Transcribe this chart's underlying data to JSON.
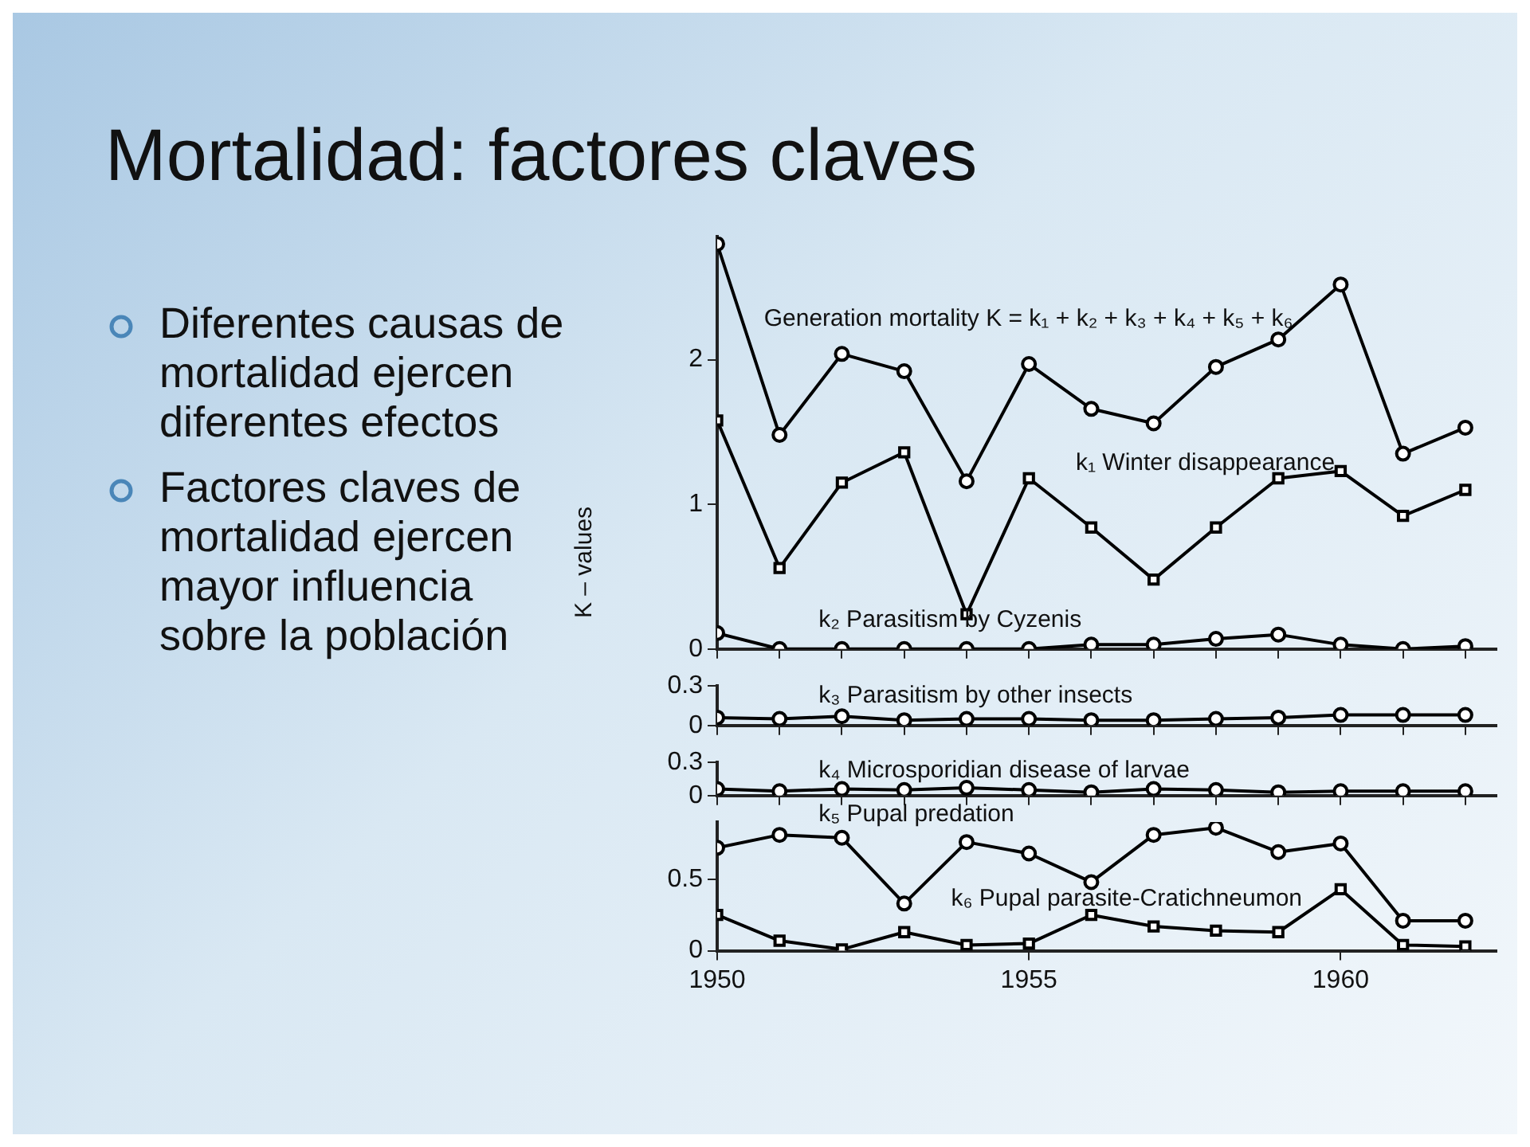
{
  "chart_data": [
    {
      "type": "line",
      "title": "Mortalidad: factores claves",
      "ylabel": "K – values",
      "annotations": [
        "Diferentes causas de mortalidad ejercen diferentes efectos",
        "Factores claves de mortalidad ejercen mayor influencia sobre la población"
      ],
      "x": [
        1950,
        1951,
        1952,
        1953,
        1954,
        1955,
        1956,
        1957,
        1958,
        1959,
        1960,
        1961,
        1962
      ],
      "xlim": [
        1950,
        1962.5
      ],
      "ylim": [
        0,
        2.85
      ],
      "yticks": [
        0,
        1,
        2
      ],
      "tick_labels": "y",
      "grid": false,
      "legend": false,
      "series": [
        {
          "name": "Generation mortality K = k₁ + k₂ + k₃ + k₄ + k₅ + k₆",
          "color": "#000000",
          "marker": "circle",
          "values": [
            2.8,
            1.48,
            2.04,
            1.92,
            1.16,
            1.97,
            1.66,
            1.56,
            1.95,
            2.14,
            2.52,
            1.35,
            1.53
          ]
        },
        {
          "name": "k₁ Winter disappearance",
          "color": "#000000",
          "marker": "square",
          "values": [
            1.58,
            0.56,
            1.15,
            1.36,
            0.24,
            1.18,
            0.84,
            0.48,
            0.84,
            1.18,
            1.23,
            0.92,
            1.1
          ]
        },
        {
          "name": "k₂ Parasitism by Cyzenis",
          "color": "#000000",
          "marker": "circle",
          "values": [
            0.11,
            0,
            0,
            0,
            0,
            0,
            0.03,
            0.03,
            0.07,
            0.1,
            0.03,
            0,
            0.02
          ]
        }
      ]
    },
    {
      "type": "line",
      "x": [
        1950,
        1951,
        1952,
        1953,
        1954,
        1955,
        1956,
        1957,
        1958,
        1959,
        1960,
        1961,
        1962
      ],
      "xlim": [
        1950,
        1962.5
      ],
      "ylim": [
        0,
        0.3
      ],
      "yticks": [
        0,
        0.3
      ],
      "tick_labels": "y",
      "grid": false,
      "legend": false,
      "series": [
        {
          "name": "k₃ Parasitism by other insects",
          "color": "#000000",
          "marker": "circle",
          "values": [
            0.06,
            0.05,
            0.07,
            0.04,
            0.05,
            0.05,
            0.04,
            0.04,
            0.05,
            0.06,
            0.08,
            0.08,
            0.08
          ]
        }
      ]
    },
    {
      "type": "line",
      "x": [
        1950,
        1951,
        1952,
        1953,
        1954,
        1955,
        1956,
        1957,
        1958,
        1959,
        1960,
        1961,
        1962
      ],
      "xlim": [
        1950,
        1962.5
      ],
      "ylim": [
        0,
        0.3
      ],
      "yticks": [
        0,
        0.3
      ],
      "tick_labels": "y",
      "grid": false,
      "legend": false,
      "series": [
        {
          "name": "k₄ Microsporidian disease of larvae",
          "color": "#000000",
          "marker": "circle",
          "values": [
            0.06,
            0.04,
            0.06,
            0.05,
            0.07,
            0.05,
            0.03,
            0.06,
            0.05,
            0.03,
            0.04,
            0.04,
            0.04
          ]
        }
      ]
    },
    {
      "type": "line",
      "x": [
        1950,
        1951,
        1952,
        1953,
        1954,
        1955,
        1956,
        1957,
        1958,
        1959,
        1960,
        1961,
        1962
      ],
      "xlim": [
        1950,
        1962.5
      ],
      "ylim": [
        0,
        0.9
      ],
      "yticks": [
        0,
        0.5
      ],
      "xticks": [
        1950,
        1955,
        1960
      ],
      "grid": false,
      "legend": false,
      "series": [
        {
          "name": "k₅ Pupal predation",
          "color": "#000000",
          "marker": "circle",
          "values": [
            0.72,
            0.81,
            0.79,
            0.33,
            0.76,
            0.68,
            0.48,
            0.81,
            0.86,
            0.69,
            0.75,
            0.21,
            0.21
          ]
        },
        {
          "name": "k₆ Pupal parasite-Cratichneumon",
          "color": "#000000",
          "marker": "square",
          "values": [
            0.25,
            0.07,
            0.01,
            0.13,
            0.04,
            0.05,
            0.25,
            0.17,
            0.14,
            0.13,
            0.43,
            0.04,
            0.03
          ]
        }
      ]
    }
  ]
}
